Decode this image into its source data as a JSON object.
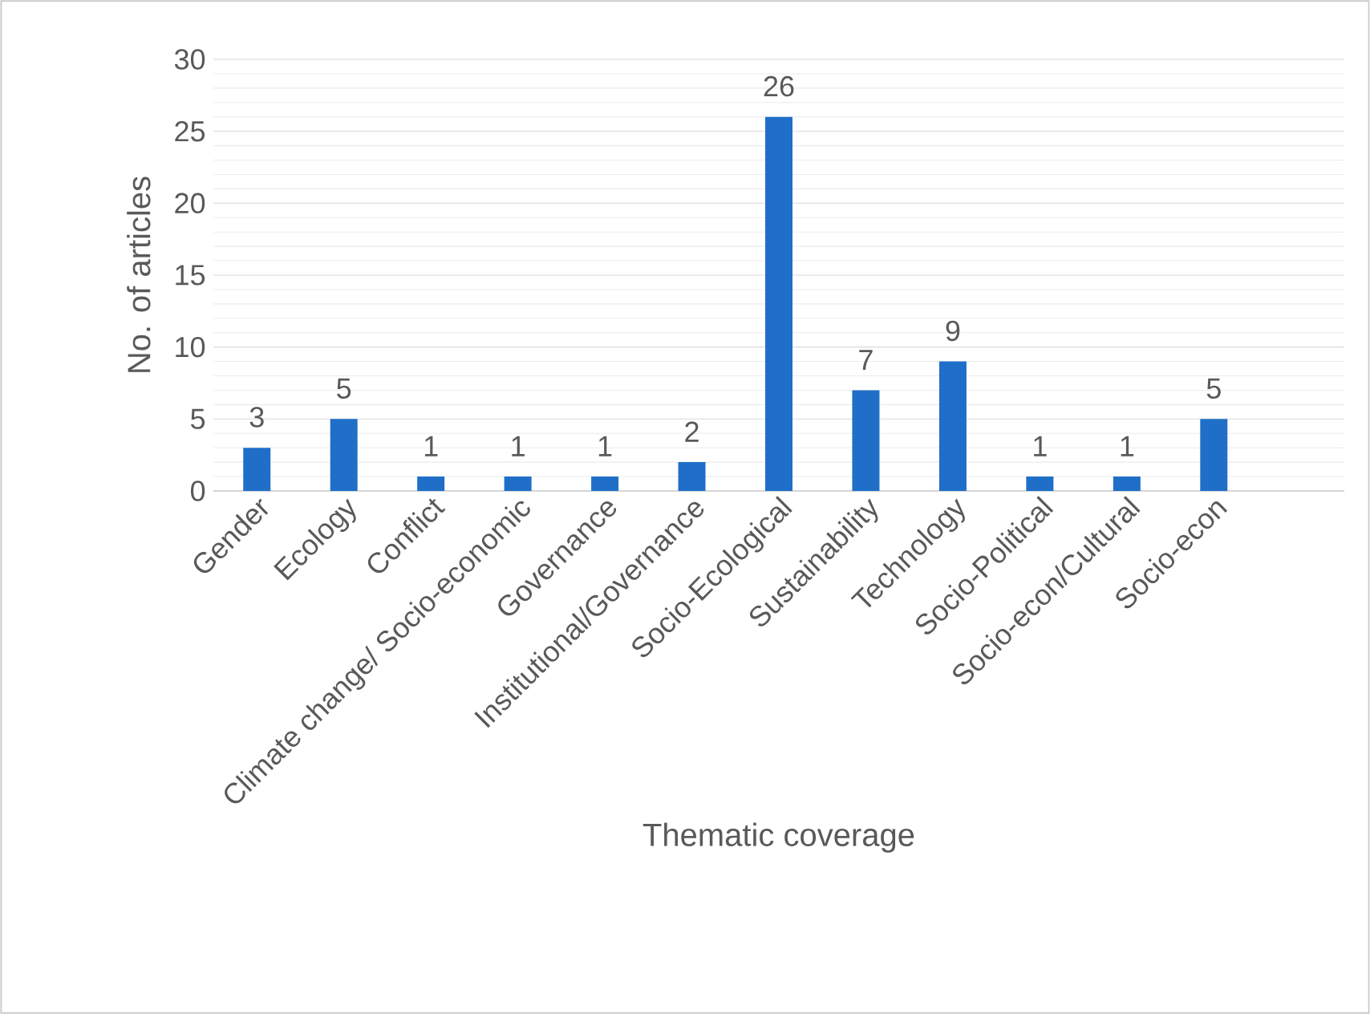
{
  "chart_data": {
    "type": "bar",
    "xlabel": "Thematic coverage",
    "ylabel": "No. of articles",
    "categories": [
      "Gender",
      "Ecology",
      "Conflict",
      "Climate change/ Socio-economic",
      "Governance",
      "Institutional/Governance",
      "Socio-Ecological",
      "Sustainability",
      "Technology",
      "Socio-Political",
      "Socio-econ/Cultural",
      "Socio-econ"
    ],
    "values": [
      3,
      5,
      1,
      1,
      1,
      2,
      26,
      7,
      9,
      1,
      1,
      5
    ],
    "color": "#1f6fc8",
    "ylim": [
      0,
      30
    ],
    "yticks": [
      0,
      5,
      10,
      15,
      20,
      25,
      30
    ],
    "grid": "y",
    "data_labels": true
  }
}
